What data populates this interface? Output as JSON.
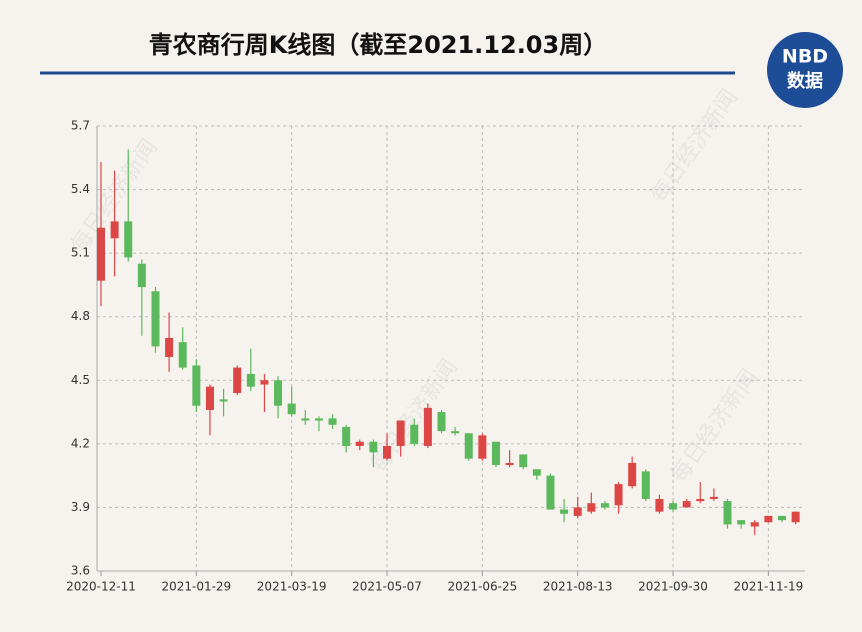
{
  "title": "青农商行周K线图（截至2021.12.03周）",
  "logo": {
    "brand": "NBD",
    "label": "数据"
  },
  "watermark": "每日经济新闻",
  "chart_data": {
    "type": "candlestick",
    "categories": [
      "2020-12-11",
      null,
      null,
      null,
      null,
      null,
      null,
      "2021-01-29",
      null,
      null,
      null,
      null,
      null,
      null,
      "2021-03-19",
      null,
      null,
      null,
      null,
      null,
      null,
      "2021-05-07",
      null,
      null,
      null,
      null,
      null,
      null,
      "2021-06-25",
      null,
      null,
      null,
      null,
      null,
      null,
      "2021-08-13",
      null,
      null,
      null,
      null,
      null,
      null,
      "2021-09-30",
      null,
      null,
      null,
      null,
      null,
      null,
      "2021-11-19",
      null,
      null
    ],
    "open": [
      4.97,
      5.17,
      5.25,
      5.05,
      4.92,
      4.61,
      4.68,
      4.57,
      4.36,
      4.41,
      4.44,
      4.53,
      4.48,
      4.5,
      4.39,
      4.32,
      4.32,
      4.32,
      4.28,
      4.19,
      4.21,
      4.13,
      4.19,
      4.29,
      4.19,
      4.35,
      4.26,
      4.25,
      4.13,
      4.21,
      4.1,
      4.15,
      4.08,
      4.05,
      3.89,
      3.86,
      3.88,
      3.92,
      3.91,
      4.0,
      4.07,
      3.88,
      3.92,
      3.9,
      3.93,
      3.94,
      3.93,
      3.84,
      3.81,
      3.83,
      3.86,
      3.83
    ],
    "high": [
      5.53,
      5.49,
      5.59,
      5.07,
      4.94,
      4.82,
      4.75,
      4.6,
      4.48,
      4.46,
      4.57,
      4.65,
      4.53,
      4.52,
      4.47,
      4.36,
      4.33,
      4.34,
      4.29,
      4.22,
      4.22,
      4.25,
      4.31,
      4.32,
      4.39,
      4.36,
      4.28,
      4.25,
      4.25,
      4.21,
      4.17,
      4.15,
      4.08,
      4.06,
      3.94,
      3.95,
      3.97,
      3.93,
      4.02,
      4.14,
      4.08,
      3.96,
      3.93,
      3.94,
      4.02,
      3.99,
      3.94,
      3.84,
      3.84,
      3.86,
      3.86,
      3.88
    ],
    "low": [
      4.85,
      4.99,
      5.06,
      4.71,
      4.63,
      4.54,
      4.55,
      4.35,
      4.24,
      4.33,
      4.43,
      4.45,
      4.35,
      4.32,
      4.33,
      4.29,
      4.26,
      4.27,
      4.16,
      4.17,
      4.09,
      4.12,
      4.14,
      4.19,
      4.18,
      4.25,
      4.24,
      4.12,
      4.12,
      4.09,
      4.09,
      4.08,
      4.03,
      3.89,
      3.83,
      3.85,
      3.87,
      3.89,
      3.87,
      3.99,
      3.93,
      3.87,
      3.88,
      3.9,
      3.92,
      3.93,
      3.8,
      3.8,
      3.77,
      3.83,
      3.83,
      3.82
    ],
    "close": [
      5.22,
      5.25,
      5.08,
      4.94,
      4.66,
      4.7,
      4.56,
      4.38,
      4.47,
      4.4,
      4.56,
      4.47,
      4.5,
      4.38,
      4.34,
      4.31,
      4.31,
      4.29,
      4.19,
      4.21,
      4.16,
      4.19,
      4.31,
      4.2,
      4.37,
      4.26,
      4.25,
      4.13,
      4.24,
      4.1,
      4.11,
      4.09,
      4.05,
      3.89,
      3.87,
      3.9,
      3.92,
      3.9,
      4.01,
      4.11,
      3.94,
      3.94,
      3.89,
      3.93,
      3.94,
      3.95,
      3.82,
      3.82,
      3.83,
      3.86,
      3.84,
      3.88
    ],
    "up_color": "#dc4745",
    "down_color": "#5cb85c",
    "ylim": [
      3.6,
      5.7
    ],
    "yticks": [
      3.6,
      3.9,
      4.2,
      4.5,
      4.8,
      5.1,
      5.4,
      5.7
    ],
    "grid": true
  }
}
